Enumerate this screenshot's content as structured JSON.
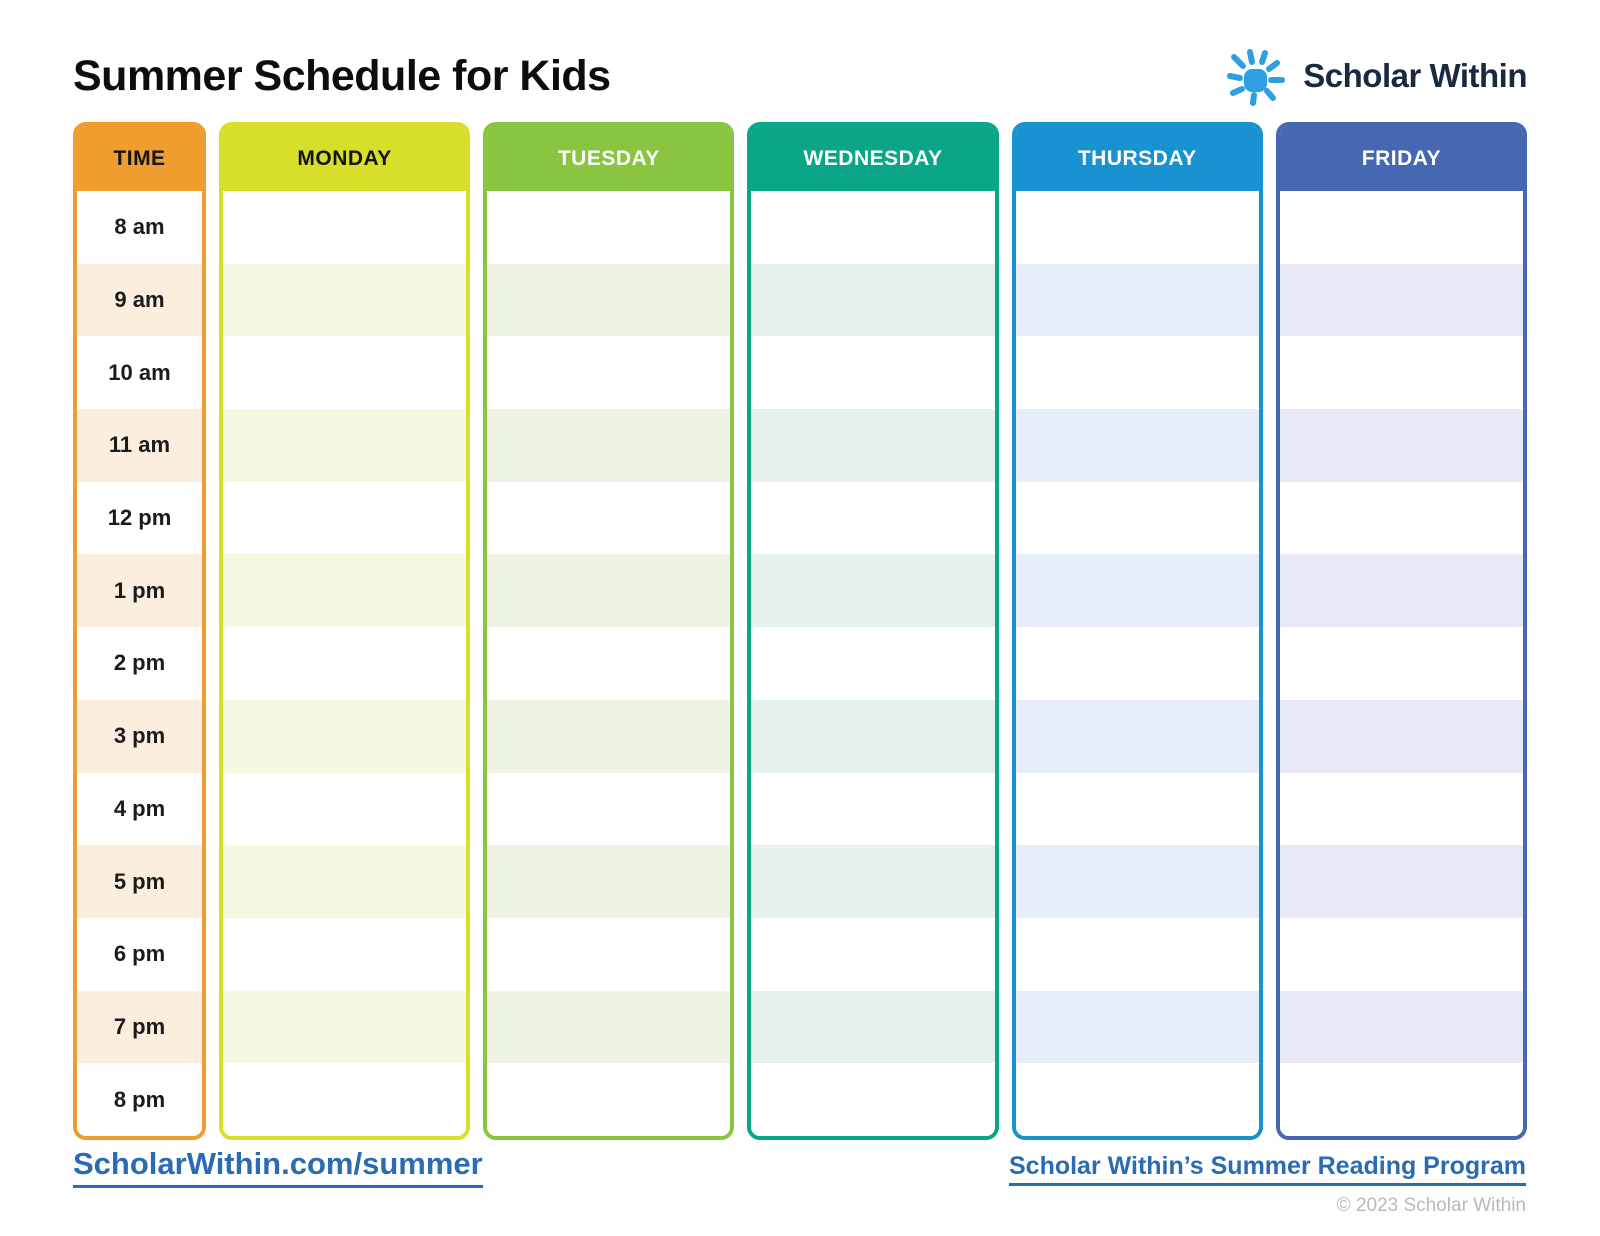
{
  "header": {
    "title": "Summer Schedule for Kids",
    "logo_text": "Scholar Within",
    "logo_sun_color": "#2E9FE0",
    "logo_text_color": "#182940"
  },
  "schedule": {
    "times": [
      "8 am",
      "9 am",
      "10 am",
      "11 am",
      "12 pm",
      "1 pm",
      "2 pm",
      "3 pm",
      "4 pm",
      "5 pm",
      "6 pm",
      "7 pm",
      "8 pm"
    ],
    "columns": [
      {
        "label": "TIME",
        "type": "time",
        "color": "#EE9D2E",
        "tint": "#FBEEDF",
        "header_text_color": "#151515"
      },
      {
        "label": "MONDAY",
        "type": "day",
        "color": "#D7DF2B",
        "tint": "#F7F8E2",
        "header_text_color": "#151515"
      },
      {
        "label": "TUESDAY",
        "type": "day",
        "color": "#8AC541",
        "tint": "#EDF4E3",
        "header_text_color": "#FFFFFF"
      },
      {
        "label": "WEDNESDAY",
        "type": "day",
        "color": "#0BA588",
        "tint": "#E5F1ED",
        "header_text_color": "#FFFFFF"
      },
      {
        "label": "THURSDAY",
        "type": "day",
        "color": "#1992D2",
        "tint": "#E7EDF8",
        "header_text_color": "#FFFFFF"
      },
      {
        "label": "FRIDAY",
        "type": "day",
        "color": "#4667B2",
        "tint": "#E8EBF7",
        "header_text_color": "#FFFFFF"
      }
    ]
  },
  "footer": {
    "left_link": "ScholarWithin.com/summer",
    "right_link": "Scholar Within’s Summer Reading Program",
    "copyright": "© 2023 Scholar Within",
    "link_color": "#2A6BB3"
  }
}
